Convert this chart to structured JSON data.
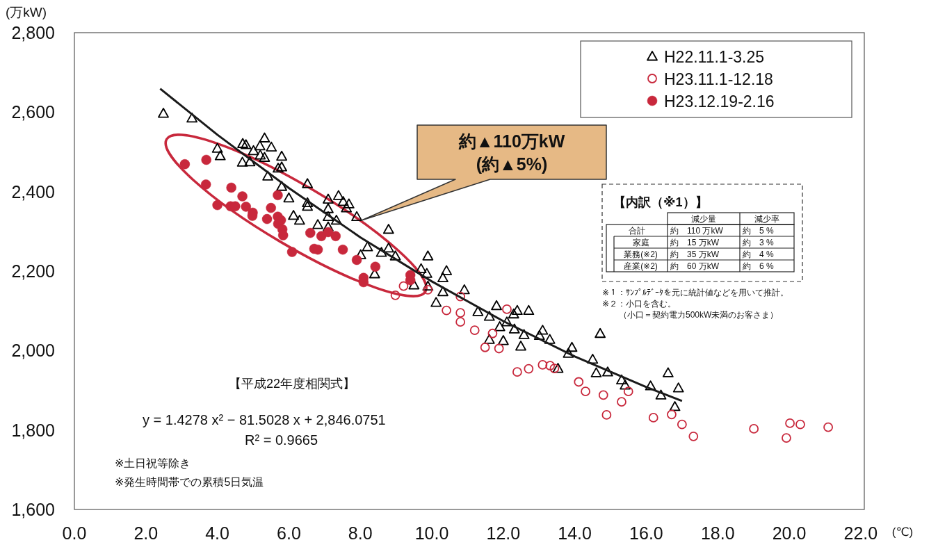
{
  "chart_data": {
    "type": "scatter",
    "xlabel": "(℃)",
    "ylabel": "(万kW)",
    "xlim": [
      0,
      22.1
    ],
    "ylim": [
      1600,
      2800
    ],
    "xticks": [
      {
        "value": 0,
        "label": "0.0"
      },
      {
        "value": 2,
        "label": "2.0"
      },
      {
        "value": 4,
        "label": "4.0"
      },
      {
        "value": 6,
        "label": "6.0"
      },
      {
        "value": 8,
        "label": "8.0"
      },
      {
        "value": 10,
        "label": "10.0"
      },
      {
        "value": 12,
        "label": "12.0"
      },
      {
        "value": 14,
        "label": "14.0"
      },
      {
        "value": 16,
        "label": "16.0"
      },
      {
        "value": 18,
        "label": "18.0"
      },
      {
        "value": 20,
        "label": "20.0"
      },
      {
        "value": 22,
        "label": "22.0"
      }
    ],
    "yticks": [
      {
        "value": 1600,
        "label": "1,600"
      },
      {
        "value": 1800,
        "label": "1,800"
      },
      {
        "value": 2000,
        "label": "2,000"
      },
      {
        "value": 2200,
        "label": "2,200"
      },
      {
        "value": 2400,
        "label": "2,400"
      },
      {
        "value": 2600,
        "label": "2,600"
      },
      {
        "value": 2800,
        "label": "2,800"
      }
    ],
    "grid": false,
    "legend": "top right",
    "series": [
      {
        "name": "H22.11.1-3.25",
        "marker": "triangle",
        "color": "#000000",
        "x": [
          2.49,
          3.29,
          4.71,
          4.8,
          5.32,
          5.19,
          5.51,
          5.01,
          5.2,
          5.32,
          5.8,
          5.7,
          5.8,
          4.7,
          4.91,
          4.0,
          4.08,
          5.41,
          5.8,
          6.52,
          6.0,
          6.52,
          6.52,
          7.1,
          7.39,
          7.52,
          7.68,
          7.61,
          7.1,
          7.1,
          7.33,
          6.13,
          6.3,
          6.81,
          7.1,
          7.9,
          8.79,
          8.2,
          8.01,
          8.59,
          8.79,
          8.98,
          8.4,
          9.5,
          9.7,
          9.89,
          9.86,
          9.89,
          10.41,
          10.31,
          10.31,
          10.91,
          10.12,
          11.29,
          11.81,
          11.61,
          12.39,
          12.71,
          12.29,
          12.1,
          11.9,
          12.31,
          12.58,
          13.1,
          13.01,
          13.3,
          11.61,
          12.0,
          12.49,
          13.53,
          13.92,
          13.82,
          14.5,
          14.6,
          14.92,
          14.71,
          15.31,
          15.41,
          16.12,
          16.41,
          16.61,
          16.9,
          16.8
        ],
        "values": [
          2597,
          2585,
          2521,
          2518,
          2535,
          2515,
          2512,
          2503,
          2492,
          2486,
          2489,
          2459,
          2462,
          2474,
          2475,
          2509,
          2490,
          2439,
          2413,
          2420,
          2384,
          2372,
          2363,
          2381,
          2390,
          2375,
          2369,
          2359,
          2357,
          2337,
          2328,
          2340,
          2328,
          2317,
          2311,
          2337,
          2305,
          2261,
          2241,
          2247,
          2258,
          2238,
          2193,
          2165,
          2206,
          2238,
          2194,
          2162,
          2201,
          2183,
          2148,
          2153,
          2121,
          2098,
          2113,
          2086,
          2101,
          2101,
          2092,
          2072,
          2060,
          2054,
          2040,
          2051,
          2038,
          2028,
          2028,
          2025,
          2011,
          1955,
          2008,
          1993,
          1978,
          1944,
          1946,
          2043,
          1926,
          1913,
          1911,
          1888,
          1944,
          1906,
          1859
        ]
      },
      {
        "name": "H23.11.1-12.18",
        "marker": "circle",
        "color": "#c8283c",
        "x": [
          8.98,
          9.21,
          9.89,
          10.8,
          10.41,
          10.8,
          10.8,
          11.2,
          12.1,
          11.7,
          11.49,
          11.88,
          12.39,
          12.71,
          13.1,
          13.31,
          13.43,
          14.11,
          14.3,
          14.8,
          15.5,
          15.31,
          14.89,
          16.2,
          16.71,
          17.0,
          17.32,
          19.01,
          19.92,
          20.02,
          20.31,
          21.09
        ],
        "values": [
          2139,
          2162,
          2153,
          2136,
          2101,
          2095,
          2072,
          2051,
          2104,
          2043,
          2008,
          2005,
          1946,
          1954,
          1964,
          1962,
          1955,
          1921,
          1897,
          1888,
          1897,
          1871,
          1838,
          1831,
          1839,
          1814,
          1784,
          1803,
          1780,
          1817,
          1814,
          1807
        ]
      },
      {
        "name": "H23.12.19-2.16",
        "marker": "circle",
        "color": "#c8283c",
        "x": [
          3.09,
          3.69,
          3.68,
          4.39,
          4.7,
          4.0,
          4.37,
          4.5,
          4.8,
          4.99,
          4.98,
          5.5,
          5.69,
          5.39,
          5.69,
          5.78,
          5.7,
          5.82,
          5.84,
          6.09,
          6.6,
          6.91,
          7.1,
          7.31,
          6.71,
          6.81,
          7.51,
          7.9,
          8.42,
          8.09,
          8.09,
          9.4,
          9.4
        ],
        "values": [
          2469,
          2480,
          2418,
          2410,
          2388,
          2366,
          2363,
          2363,
          2362,
          2347,
          2339,
          2359,
          2391,
          2331,
          2337,
          2328,
          2319,
          2305,
          2290,
          2248,
          2296,
          2288,
          2298,
          2288,
          2256,
          2254,
          2254,
          2228,
          2211,
          2183,
          2172,
          2190,
          2177
        ]
      },
      {
        "type": "line",
        "marker": "none",
        "color": "#1a1a1a",
        "x": [
          2.4,
          4,
          6,
          8,
          10,
          12,
          14,
          16,
          17
        ],
        "values": [
          2659,
          2543,
          2409,
          2285,
          2174,
          2074,
          1985,
          1908,
          1873
        ]
      }
    ],
    "annotations": [
      "約▲110万kW\n(約▲5%)",
      "【平成22年度相関式】",
      "y =  1.4278 x² −  81.5028 x +  2,846.0751",
      "R² =  0.9665",
      "※土日祝等除き",
      "※発生時間帯での累積5日気温",
      "【内訳（※1）】",
      "減少量",
      "減少率",
      "合計",
      "約　110 万kW",
      "約　5 %",
      "家庭",
      "約　15 万kW",
      "約　3 %",
      "業務(※2)",
      "約　35 万kW",
      "約　4 %",
      "産業(※2)",
      "約　60 万kW",
      "約　6 %",
      "※１：ｻﾝﾌﾟﾙﾃﾞｰﾀを元に統計値などを用いて推計。",
      "※２：小口を含む。",
      "（小口＝契約電力500kW未満のお客さま）"
    ]
  }
}
